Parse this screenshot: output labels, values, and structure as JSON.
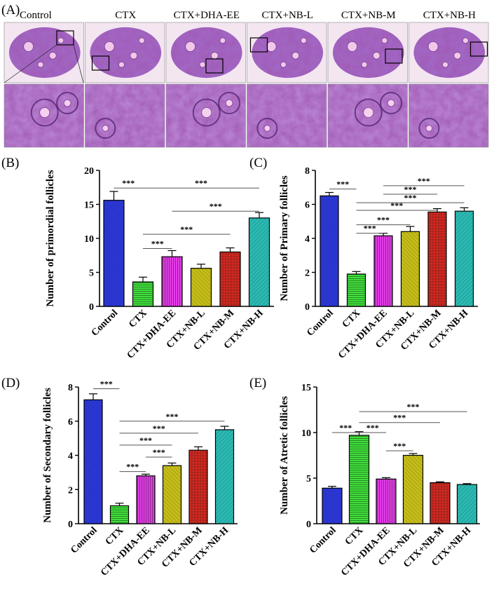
{
  "figure": {
    "panel_a": {
      "label": "(A)",
      "columns": [
        "Control",
        "CTX",
        "CTX+DHA-EE",
        "CTX+NB-L",
        "CTX+NB-M",
        "CTX+NB-H"
      ]
    }
  },
  "colors": {
    "Control": "#2b37d6",
    "CTX": "#3fe03a",
    "CTX+DHA-EE": "#e23ce6",
    "CTX+NB-L": "#c4bd18",
    "CTX+NB-M": "#d82a20",
    "CTX+NB-H": "#2ab9b2"
  },
  "chart_data": [
    {
      "panel": "(B)",
      "type": "bar",
      "ylabel": "Number of primordial follicles",
      "categories": [
        "Control",
        "CTX",
        "CTX+DHA-EE",
        "CTX+NB-L",
        "CTX+NB-M",
        "CTX+NB-H"
      ],
      "values": [
        15.6,
        3.6,
        7.3,
        5.6,
        8.0,
        13.0
      ],
      "errors": [
        1.3,
        0.7,
        0.9,
        0.6,
        0.6,
        0.8
      ],
      "ylim": [
        0,
        20
      ],
      "yticks": [
        "0",
        "5",
        "10",
        "15",
        "20"
      ],
      "significance": [
        {
          "from": 0,
          "to": 1,
          "label": "***",
          "y": 17.4
        },
        {
          "from": 1,
          "to": 5,
          "label": "***",
          "y": 17.4
        },
        {
          "from": 2,
          "to": 5,
          "label": "***",
          "y": 14.0
        },
        {
          "from": 1,
          "to": 4,
          "label": "***",
          "y": 10.6
        },
        {
          "from": 1,
          "to": 2,
          "label": "***",
          "y": 8.5
        }
      ]
    },
    {
      "panel": "(C)",
      "type": "bar",
      "ylabel": "Number of Primary follicles",
      "categories": [
        "Control",
        "CTX",
        "CTX+DHA-EE",
        "CTX+NB-L",
        "CTX+NB-M",
        "CTX+NB-H"
      ],
      "values": [
        6.5,
        1.9,
        4.15,
        4.4,
        5.55,
        5.6
      ],
      "errors": [
        0.2,
        0.15,
        0.15,
        0.3,
        0.2,
        0.2
      ],
      "ylim": [
        0,
        8
      ],
      "yticks": [
        "0",
        "2",
        "4",
        "6",
        "8"
      ],
      "significance": [
        {
          "from": 0,
          "to": 1,
          "label": "***",
          "y": 6.9
        },
        {
          "from": 2,
          "to": 5,
          "label": "***",
          "y": 7.1
        },
        {
          "from": 2,
          "to": 4,
          "label": "***",
          "y": 6.6
        },
        {
          "from": 1,
          "to": 5,
          "label": "***",
          "y": 6.1
        },
        {
          "from": 1,
          "to": 4,
          "label": "***",
          "y": 5.65
        },
        {
          "from": 1,
          "to": 3,
          "label": "***",
          "y": 4.8
        },
        {
          "from": 1,
          "to": 2,
          "label": "***",
          "y": 4.3
        }
      ]
    },
    {
      "panel": "(D)",
      "type": "bar",
      "ylabel": "Number of Secondary follicles",
      "categories": [
        "Control",
        "CTX",
        "CTX+DHA-EE",
        "CTX+NB-L",
        "CTX+NB-M",
        "CTX+NB-H"
      ],
      "values": [
        7.25,
        1.05,
        2.8,
        3.4,
        4.3,
        5.5
      ],
      "errors": [
        0.35,
        0.15,
        0.1,
        0.15,
        0.2,
        0.2
      ],
      "ylim": [
        0,
        8
      ],
      "yticks": [
        "0",
        "2",
        "4",
        "6",
        "8"
      ],
      "significance": [
        {
          "from": 0,
          "to": 1,
          "label": "***",
          "y": 7.9
        },
        {
          "from": 1,
          "to": 5,
          "label": "***",
          "y": 6.0
        },
        {
          "from": 1,
          "to": 4,
          "label": "***",
          "y": 5.3
        },
        {
          "from": 1,
          "to": 3,
          "label": "***",
          "y": 4.6
        },
        {
          "from": 2,
          "to": 3,
          "label": "***",
          "y": 3.9
        },
        {
          "from": 1,
          "to": 2,
          "label": "***",
          "y": 3.05
        }
      ]
    },
    {
      "panel": "(E)",
      "type": "bar",
      "ylabel": "Number of Atretic follicles",
      "categories": [
        "Control",
        "CTX",
        "CTX+DHA-EE",
        "CTX+NB-L",
        "CTX+NB-M",
        "CTX+NB-H"
      ],
      "values": [
        3.9,
        9.7,
        4.9,
        7.5,
        4.5,
        4.3
      ],
      "errors": [
        0.2,
        0.4,
        0.15,
        0.2,
        0.1,
        0.1
      ],
      "ylim": [
        0,
        15
      ],
      "yticks": [
        "0",
        "5",
        "10",
        "15"
      ],
      "significance": [
        {
          "from": 1,
          "to": 5,
          "label": "***",
          "y": 12.3
        },
        {
          "from": 1,
          "to": 4,
          "label": "***",
          "y": 11.1
        },
        {
          "from": 0,
          "to": 1,
          "label": "***",
          "y": 10.0
        },
        {
          "from": 1,
          "to": 2,
          "label": "***",
          "y": 10.0
        },
        {
          "from": 2,
          "to": 3,
          "label": "***",
          "y": 8.0
        }
      ]
    }
  ]
}
